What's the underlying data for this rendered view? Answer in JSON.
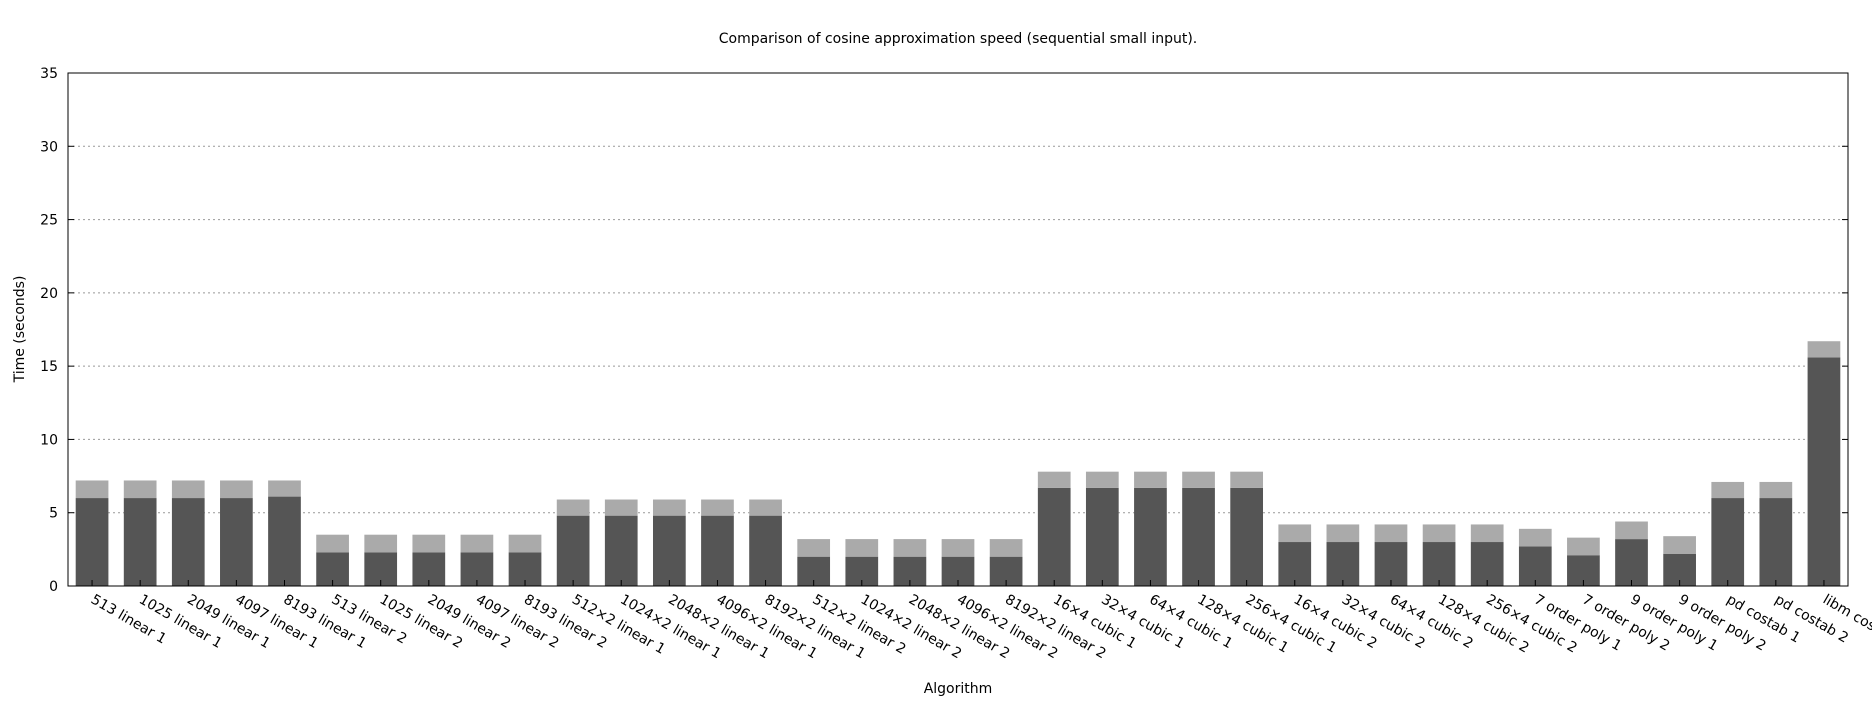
{
  "chart_data": {
    "type": "bar",
    "stacked": true,
    "title": "Comparison of cosine approximation speed (sequential small input).",
    "xlabel": "Algorithm",
    "ylabel": "Time (seconds)",
    "ylim": [
      0,
      35
    ],
    "yticks": [
      0,
      5,
      10,
      15,
      20,
      25,
      30,
      35
    ],
    "grid": "horizontal dotted",
    "legend": "none",
    "categories": [
      "513 linear 1",
      "1025 linear 1",
      "2049 linear 1",
      "4097 linear 1",
      "8193 linear 1",
      "513 linear 2",
      "1025 linear 2",
      "2049 linear 2",
      "4097 linear 2",
      "8193 linear 2",
      "512×2 linear 1",
      "1024×2 linear 1",
      "2048×2 linear 1",
      "4096×2 linear 1",
      "8192×2 linear 1",
      "512×2 linear 2",
      "1024×2 linear 2",
      "2048×2 linear 2",
      "4096×2 linear 2",
      "8192×2 linear 2",
      "16×4 cubic 1",
      "32×4 cubic 1",
      "64×4 cubic 1",
      "128×4 cubic 1",
      "256×4 cubic 1",
      "16×4 cubic 2",
      "32×4 cubic 2",
      "64×4 cubic 2",
      "128×4 cubic 2",
      "256×4 cubic 2",
      "7 order poly 1",
      "7 order poly 2",
      "9 order poly 1",
      "9 order poly 2",
      "pd costab 1",
      "pd costab 2",
      "libm cosf()"
    ],
    "series": [
      {
        "color": "#555555",
        "values": [
          6.0,
          6.0,
          6.0,
          6.0,
          6.1,
          2.3,
          2.3,
          2.3,
          2.3,
          2.3,
          4.8,
          4.8,
          4.8,
          4.8,
          4.8,
          2.0,
          2.0,
          2.0,
          2.0,
          2.0,
          6.7,
          6.7,
          6.7,
          6.7,
          6.7,
          3.0,
          3.0,
          3.0,
          3.0,
          3.0,
          2.7,
          2.1,
          3.2,
          2.2,
          6.0,
          6.0,
          15.6
        ]
      },
      {
        "color": "#aaaaaa",
        "values": [
          1.2,
          1.2,
          1.2,
          1.2,
          1.1,
          1.2,
          1.2,
          1.2,
          1.2,
          1.2,
          1.1,
          1.1,
          1.1,
          1.1,
          1.1,
          1.2,
          1.2,
          1.2,
          1.2,
          1.2,
          1.1,
          1.1,
          1.1,
          1.1,
          1.1,
          1.2,
          1.2,
          1.2,
          1.2,
          1.2,
          1.2,
          1.2,
          1.2,
          1.2,
          1.1,
          1.1,
          1.1
        ]
      }
    ]
  }
}
